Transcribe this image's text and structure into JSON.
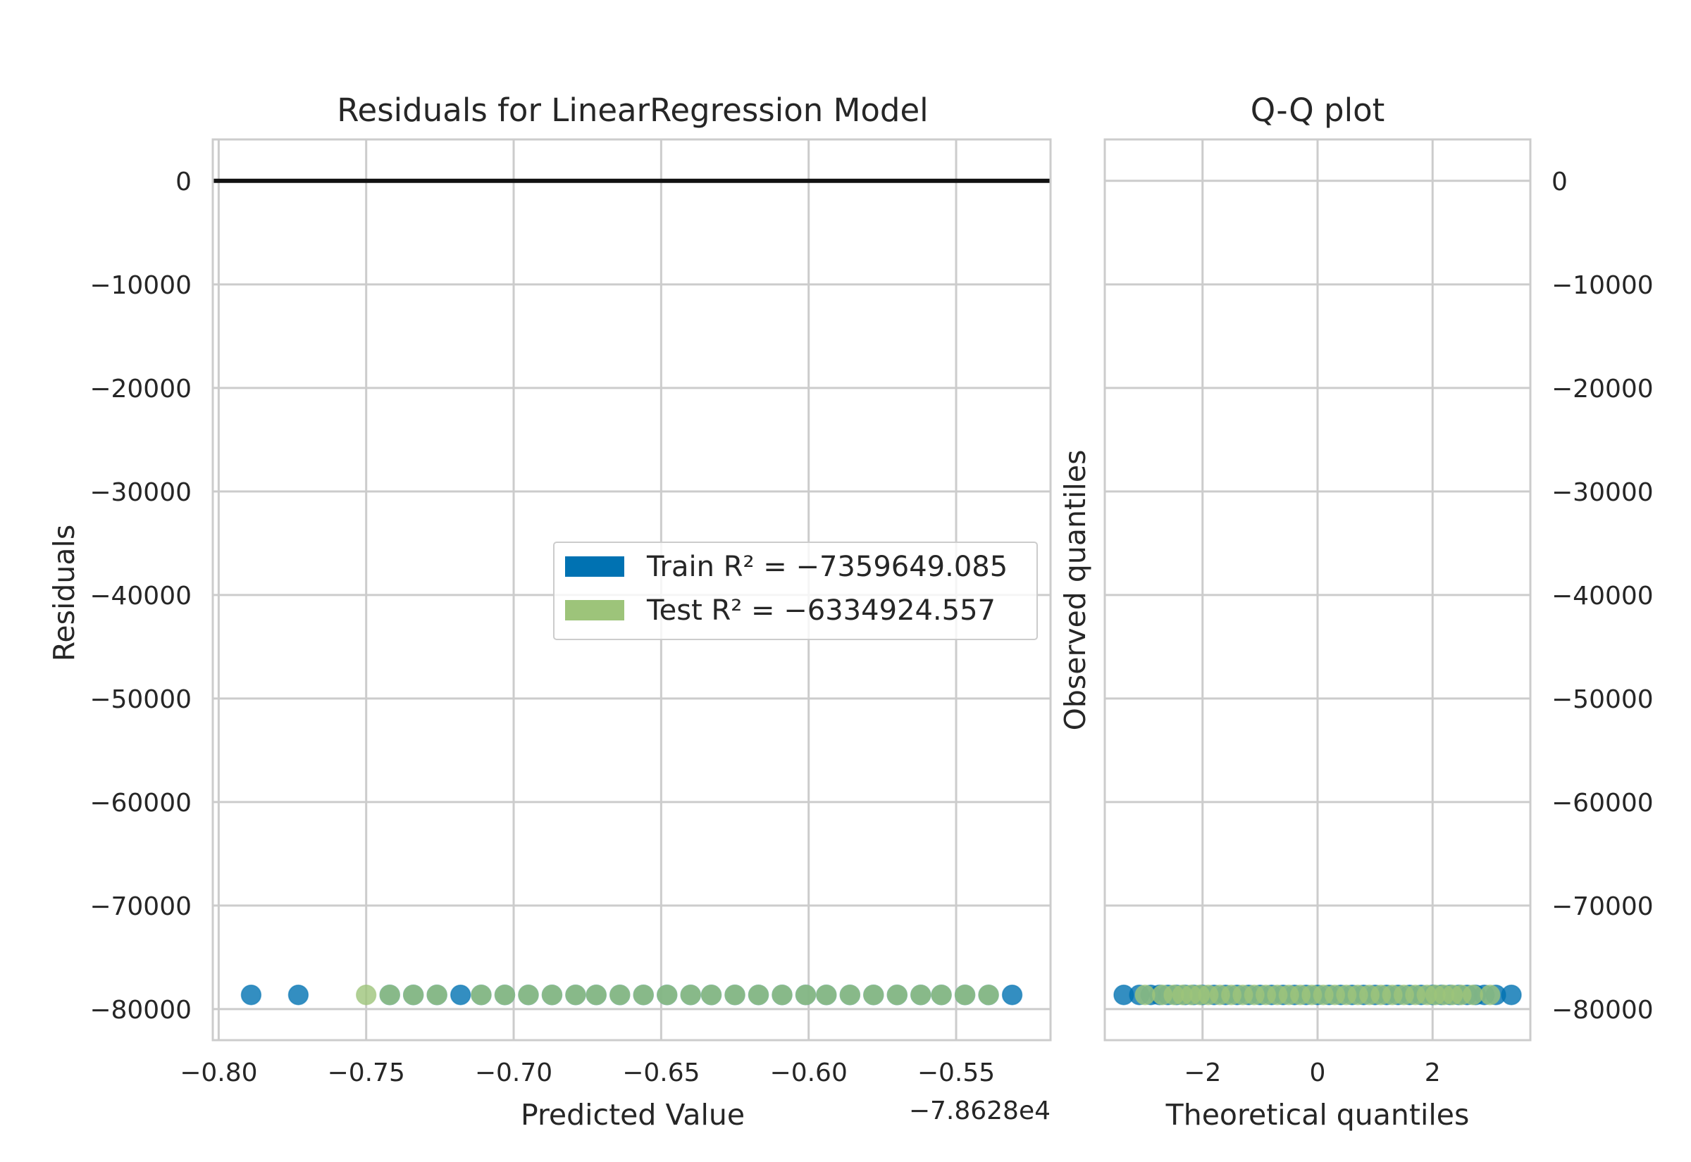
{
  "chart_data": [
    {
      "type": "scatter",
      "title": "Residuals for LinearRegression Model",
      "xlabel": "Predicted Value",
      "ylabel": "Residuals",
      "x_offset_text": "−7.8628e4",
      "xlim": [
        -0.802,
        -0.518
      ],
      "ylim": [
        -83000,
        4000
      ],
      "xticks": [
        -0.8,
        -0.75,
        -0.7,
        -0.65,
        -0.6,
        -0.55
      ],
      "xtick_labels": [
        "−0.80",
        "−0.75",
        "−0.70",
        "−0.65",
        "−0.60",
        "−0.55"
      ],
      "yticks": [
        0,
        -10000,
        -20000,
        -30000,
        -40000,
        -50000,
        -60000,
        -70000,
        -80000
      ],
      "ytick_labels": [
        "0",
        "−10000",
        "−20000",
        "−30000",
        "−40000",
        "−50000",
        "−60000",
        "−70000",
        "−80000"
      ],
      "zero_line": 0,
      "grid": true,
      "legend_position": "center",
      "series": [
        {
          "name": "Train",
          "legend_label": "Train R² = −7359649.085",
          "color": "#0072b2",
          "x": [
            -0.789,
            -0.773,
            -0.742,
            -0.734,
            -0.726,
            -0.718,
            -0.711,
            -0.703,
            -0.695,
            -0.687,
            -0.679,
            -0.672,
            -0.664,
            -0.656,
            -0.648,
            -0.64,
            -0.633,
            -0.625,
            -0.617,
            -0.609,
            -0.601,
            -0.594,
            -0.586,
            -0.578,
            -0.57,
            -0.562,
            -0.555,
            -0.547,
            -0.539,
            -0.531
          ],
          "y": [
            -78628,
            -78628,
            -78628,
            -78628,
            -78628,
            -78628,
            -78628,
            -78628,
            -78628,
            -78628,
            -78628,
            -78628,
            -78628,
            -78628,
            -78628,
            -78628,
            -78628,
            -78628,
            -78628,
            -78628,
            -78628,
            -78628,
            -78628,
            -78628,
            -78628,
            -78628,
            -78628,
            -78628,
            -78628,
            -78628
          ]
        },
        {
          "name": "Test",
          "legend_label": "Test R² = −6334924.557",
          "color": "#9dc47a",
          "x": [
            -0.75,
            -0.742,
            -0.734,
            -0.726,
            -0.711,
            -0.703,
            -0.695,
            -0.687,
            -0.679,
            -0.672,
            -0.664,
            -0.656,
            -0.648,
            -0.64,
            -0.633,
            -0.625,
            -0.617,
            -0.609,
            -0.601,
            -0.594,
            -0.586,
            -0.578,
            -0.57,
            -0.562,
            -0.555,
            -0.547,
            -0.539
          ],
          "y": [
            -78628,
            -78628,
            -78628,
            -78628,
            -78628,
            -78628,
            -78628,
            -78628,
            -78628,
            -78628,
            -78628,
            -78628,
            -78628,
            -78628,
            -78628,
            -78628,
            -78628,
            -78628,
            -78628,
            -78628,
            -78628,
            -78628,
            -78628,
            -78628,
            -78628,
            -78628,
            -78628
          ]
        }
      ]
    },
    {
      "type": "scatter",
      "title": "Q-Q plot",
      "xlabel": "Theoretical quantiles",
      "ylabel": "Observed quantiles",
      "xlim": [
        -3.7,
        3.7
      ],
      "ylim": [
        -83000,
        4000
      ],
      "xticks": [
        -2,
        0,
        2
      ],
      "xtick_labels": [
        "−2",
        "0",
        "2"
      ],
      "yticks": [
        0,
        -10000,
        -20000,
        -30000,
        -40000,
        -50000,
        -60000,
        -70000,
        -80000
      ],
      "ytick_labels": [
        "0",
        "−10000",
        "−20000",
        "−30000",
        "−40000",
        "−50000",
        "−60000",
        "−70000",
        "−80000"
      ],
      "ytick_side": "right",
      "grid": true,
      "series": [
        {
          "name": "Train",
          "color": "#0072b2",
          "x": [
            -3.37,
            -3.1,
            -2.9,
            -2.75,
            -2.6,
            -2.45,
            -2.3,
            -2.15,
            -2.0,
            -1.8,
            -1.6,
            -1.4,
            -1.2,
            -1.0,
            -0.8,
            -0.6,
            -0.4,
            -0.2,
            0.0,
            0.2,
            0.4,
            0.6,
            0.8,
            1.0,
            1.2,
            1.4,
            1.6,
            1.8,
            2.0,
            2.15,
            2.3,
            2.45,
            2.6,
            2.75,
            2.9,
            3.1,
            3.37
          ],
          "y": [
            -78628,
            -78628,
            -78628,
            -78628,
            -78628,
            -78628,
            -78628,
            -78628,
            -78628,
            -78628,
            -78628,
            -78628,
            -78628,
            -78628,
            -78628,
            -78628,
            -78628,
            -78628,
            -78628,
            -78628,
            -78628,
            -78628,
            -78628,
            -78628,
            -78628,
            -78628,
            -78628,
            -78628,
            -78628,
            -78628,
            -78628,
            -78628,
            -78628,
            -78628,
            -78628,
            -78628,
            -78628
          ]
        },
        {
          "name": "Test",
          "color": "#9dc47a",
          "x": [
            -3.0,
            -2.7,
            -2.5,
            -2.35,
            -2.2,
            -2.05,
            -1.9,
            -1.7,
            -1.5,
            -1.3,
            -1.1,
            -0.9,
            -0.7,
            -0.5,
            -0.3,
            -0.1,
            0.1,
            0.3,
            0.5,
            0.7,
            0.9,
            1.1,
            1.3,
            1.5,
            1.7,
            1.9,
            2.05,
            2.2,
            2.35,
            2.5,
            2.7,
            3.0
          ],
          "y": [
            -78628,
            -78628,
            -78628,
            -78628,
            -78628,
            -78628,
            -78628,
            -78628,
            -78628,
            -78628,
            -78628,
            -78628,
            -78628,
            -78628,
            -78628,
            -78628,
            -78628,
            -78628,
            -78628,
            -78628,
            -78628,
            -78628,
            -78628,
            -78628,
            -78628,
            -78628,
            -78628,
            -78628,
            -78628,
            -78628,
            -78628,
            -78628
          ]
        }
      ]
    }
  ]
}
